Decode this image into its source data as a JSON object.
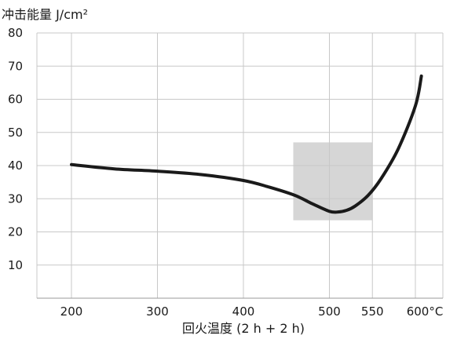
{
  "chart_data": {
    "type": "line",
    "ylabel": "冲击能量 J/cm²",
    "xlabel": "回火温度 (2 h + 2 h)",
    "xlim": [
      150,
      620
    ],
    "ylim": [
      0,
      80
    ],
    "x_ticks": [
      {
        "value": 200,
        "label": "200"
      },
      {
        "value": 300,
        "label": "300"
      },
      {
        "value": 400,
        "label": "400"
      },
      {
        "value": 500,
        "label": "500"
      },
      {
        "value": 550,
        "label": "550"
      },
      {
        "value": 600,
        "label": "600°C"
      }
    ],
    "y_ticks": [
      {
        "value": 10,
        "label": "10"
      },
      {
        "value": 20,
        "label": "20"
      },
      {
        "value": 30,
        "label": "30"
      },
      {
        "value": 40,
        "label": "40"
      },
      {
        "value": 50,
        "label": "50"
      },
      {
        "value": 60,
        "label": "60"
      },
      {
        "value": 70,
        "label": "70"
      },
      {
        "value": 80,
        "label": "80"
      }
    ],
    "grid": true,
    "highlight_region": {
      "x": [
        458,
        550
      ],
      "y": [
        23.5,
        47
      ]
    },
    "series": [
      {
        "x": [
          200,
          250,
          300,
          350,
          400,
          430,
          460,
          480,
          500,
          510,
          520,
          530,
          545,
          560,
          580,
          600,
          607
        ],
        "y": [
          40.3,
          39,
          38.3,
          37.3,
          35.5,
          33.5,
          31,
          28.5,
          26.2,
          26,
          26.5,
          27.8,
          31,
          36,
          45,
          58,
          67
        ]
      }
    ],
    "colors": {
      "line": "#1a1a1a",
      "grid": "#c8c8c8",
      "highlight": "#d6d6d6",
      "text": "#1a1a1a"
    }
  }
}
